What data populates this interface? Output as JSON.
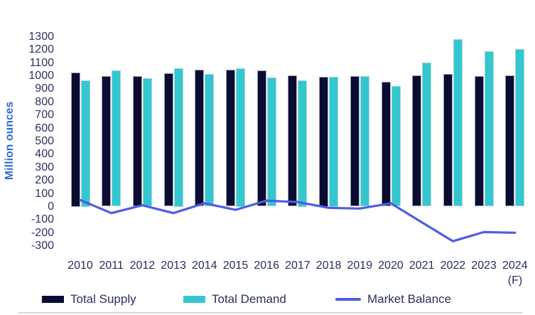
{
  "chart_data": {
    "type": "bar+line",
    "title": "",
    "ylabel": "Million ounces",
    "ylim": [
      -300,
      1300
    ],
    "ytick_step": 100,
    "grid": false,
    "legend_position": "bottom",
    "categories": [
      "2010",
      "2011",
      "2012",
      "2013",
      "2014",
      "2015",
      "2016",
      "2017",
      "2018",
      "2019",
      "2020",
      "2021",
      "2022",
      "2023",
      "2024"
    ],
    "x_note": "(F)",
    "x_note_applies_to": "2024",
    "series": [
      {
        "name": "Total Supply",
        "type": "bar",
        "color": "#0b0c32",
        "values": [
          1025,
          1000,
          1000,
          1020,
          1045,
          1045,
          1040,
          1005,
          995,
          1000,
          955,
          1005,
          1015,
          1000,
          1005
        ]
      },
      {
        "name": "Total Demand",
        "type": "bar",
        "color": "#33c7ce",
        "values": [
          965,
          1040,
          980,
          1060,
          1015,
          1060,
          985,
          965,
          995,
          1000,
          920,
          1100,
          1280,
          1190,
          1205
        ]
      },
      {
        "name": "Market Balance",
        "type": "line",
        "color": "#4e5de2",
        "values": [
          50,
          -50,
          10,
          -50,
          25,
          -25,
          45,
          35,
          -10,
          -15,
          25,
          -120,
          -265,
          -195,
          -200
        ]
      }
    ],
    "colors": {
      "axis_label_blue": "#2e6ad2",
      "tick_text": "#2b3164",
      "legend_text": "#2a3061",
      "divider": "#d9d9d9",
      "background": "#ffffff"
    }
  }
}
